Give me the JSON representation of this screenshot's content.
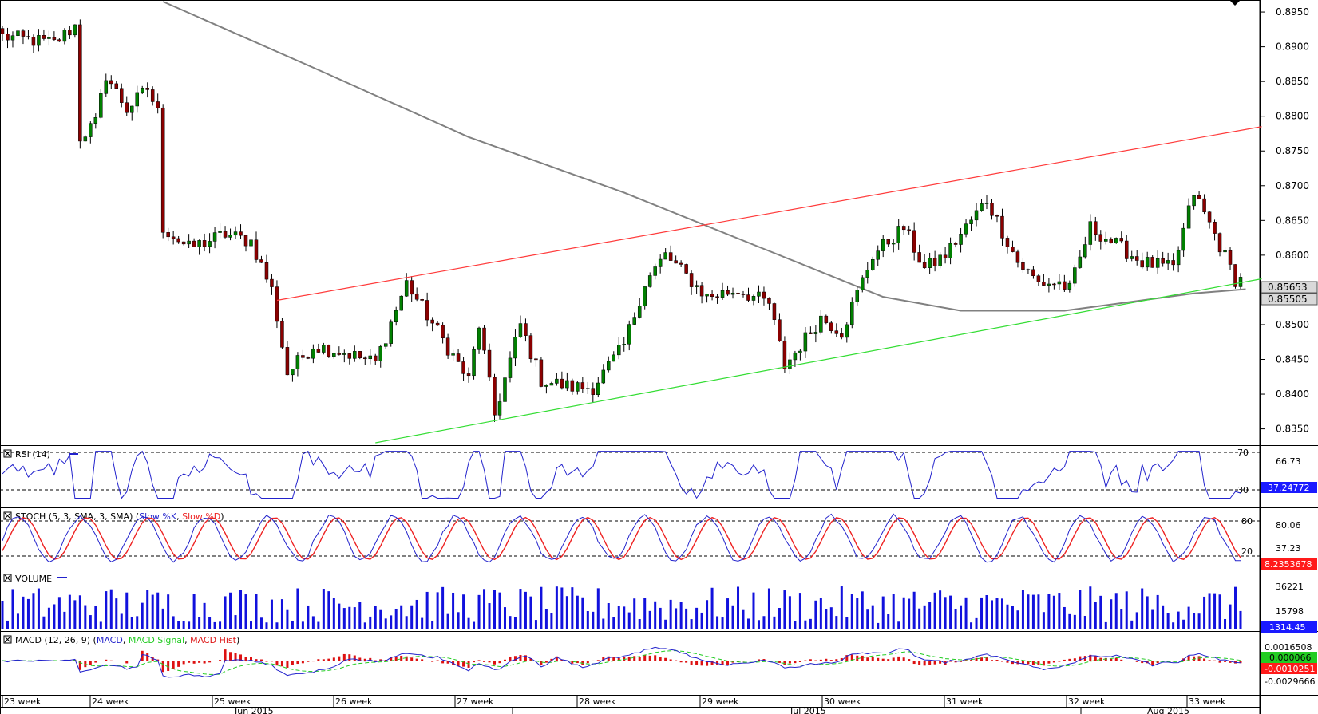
{
  "chart_data": {
    "type": "candlestick",
    "colors": {
      "up": "#008000",
      "down": "#8b0000",
      "ma": "#808080",
      "resistance": "#ff3b3b",
      "support": "#33dd33",
      "rsi": "#2222cc",
      "stoch_k": "#2222cc",
      "stoch_d": "#ee2222",
      "volume": "#1111dd",
      "macd": "#2222cc",
      "macd_signal": "#22cc22",
      "macd_hist": "#dd1111"
    },
    "price_axis": {
      "ticks": [
        "0.8950",
        "0.8900",
        "0.8850",
        "0.8800",
        "0.8750",
        "0.8700",
        "0.8650",
        "0.8600",
        "0.8550",
        "0.8500",
        "0.8450",
        "0.8400",
        "0.8350"
      ],
      "ylim": [
        0.833,
        0.8965
      ],
      "last_price": "0.85653",
      "ma_value": "0.85505"
    },
    "time_axis": {
      "weeks": [
        "23 week",
        "24 week",
        "25 week",
        "26 week",
        "27 week",
        "28 week",
        "29 week",
        "30 week",
        "31 week",
        "32 week",
        "33 week"
      ],
      "months": [
        "Jun 2015",
        "Jul 2015",
        "Aug 2015"
      ]
    },
    "candles_summary": {
      "count": 240,
      "anchors_close": [
        [
          0,
          0.8915
        ],
        [
          10,
          0.8905
        ],
        [
          14,
          0.893
        ],
        [
          15,
          0.877
        ],
        [
          18,
          0.879
        ],
        [
          20,
          0.886
        ],
        [
          24,
          0.881
        ],
        [
          28,
          0.884
        ],
        [
          30,
          0.8805
        ],
        [
          31,
          0.864
        ],
        [
          36,
          0.861
        ],
        [
          43,
          0.863
        ],
        [
          48,
          0.862
        ],
        [
          52,
          0.855
        ],
        [
          55,
          0.843
        ],
        [
          60,
          0.847
        ],
        [
          66,
          0.846
        ],
        [
          72,
          0.8445
        ],
        [
          78,
          0.856
        ],
        [
          84,
          0.849
        ],
        [
          90,
          0.842
        ],
        [
          92,
          0.85
        ],
        [
          95,
          0.837
        ],
        [
          100,
          0.85
        ],
        [
          104,
          0.842
        ],
        [
          110,
          0.841
        ],
        [
          114,
          0.841
        ],
        [
          120,
          0.847
        ],
        [
          124,
          0.856
        ],
        [
          128,
          0.86
        ],
        [
          132,
          0.857
        ],
        [
          136,
          0.854
        ],
        [
          142,
          0.855
        ],
        [
          148,
          0.853
        ],
        [
          151,
          0.844
        ],
        [
          158,
          0.851
        ],
        [
          162,
          0.849
        ],
        [
          168,
          0.86
        ],
        [
          174,
          0.864
        ],
        [
          178,
          0.858
        ],
        [
          182,
          0.86
        ],
        [
          190,
          0.868
        ],
        [
          196,
          0.859
        ],
        [
          200,
          0.856
        ],
        [
          204,
          0.856
        ],
        [
          206,
          0.855
        ],
        [
          210,
          0.864
        ],
        [
          220,
          0.859
        ],
        [
          226,
          0.858
        ],
        [
          230,
          0.869
        ],
        [
          234,
          0.863
        ],
        [
          238,
          0.8565
        ],
        [
          239,
          0.8565
        ]
      ]
    },
    "moving_average": {
      "points": [
        [
          31,
          0.8965
        ],
        [
          60,
          0.887
        ],
        [
          90,
          0.877
        ],
        [
          120,
          0.869
        ],
        [
          150,
          0.86
        ],
        [
          170,
          0.854
        ],
        [
          185,
          0.852
        ],
        [
          205,
          0.852
        ],
        [
          230,
          0.8545
        ],
        [
          240,
          0.8551
        ]
      ]
    },
    "resistance_line": {
      "from": [
        53,
        0.8535
      ],
      "to": [
        240,
        0.8785
      ]
    },
    "support_line": {
      "from": [
        72,
        0.833
      ],
      "to": [
        240,
        0.8566
      ]
    },
    "indicators": {
      "rsi": {
        "title": "RSI (14)",
        "levels": [
          "70",
          "30"
        ],
        "axis_value": "66.73",
        "current": "37.24772"
      },
      "stoch": {
        "title": "STOCH (5, 3, SMA, 3, SMA)",
        "legend_k": "Slow %K",
        "legend_d": "Slow %D",
        "levels": [
          "80",
          "20"
        ],
        "axis_values": [
          "80.06",
          "37.23"
        ],
        "current": "8.2353678"
      },
      "volume": {
        "title": "VOLUME",
        "axis_values": [
          "36221",
          "15798"
        ],
        "current": "1314.45"
      },
      "macd": {
        "title": "MACD (12, 26, 9)",
        "legend_macd": "MACD",
        "legend_signal": "MACD Signal",
        "legend_hist": "MACD Hist",
        "axis_values": [
          "0.0016508",
          "-0.0029666"
        ],
        "current_macd": "0.000066",
        "current_signal": "-0.0010251"
      }
    }
  }
}
